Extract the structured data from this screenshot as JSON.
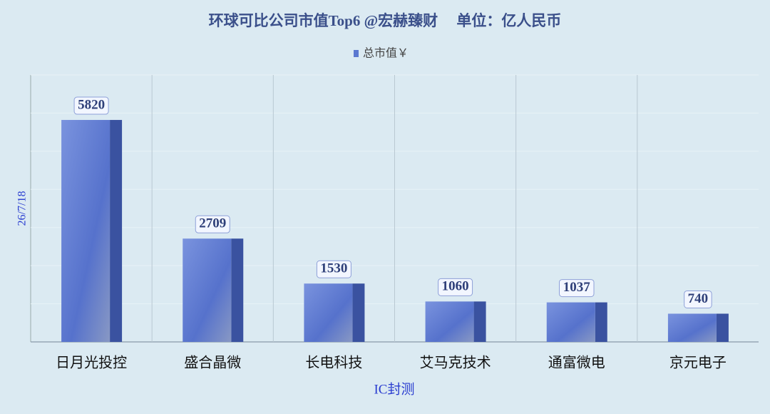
{
  "chart_data": {
    "type": "bar3d",
    "title": "环球可比公司市值Top6 @宏赫臻财     单位：亿人民币",
    "x_label": "IC封测",
    "y_label": "26/7/18",
    "categories": [
      "日月光投控",
      "盛合晶微",
      "长电科技",
      "艾马克技术",
      "通富微电",
      "京元电子"
    ],
    "series": [
      {
        "name": "总市值￥",
        "color": "#5b78d0",
        "values": [
          5820,
          2709,
          1530,
          1060,
          1037,
          740
        ]
      }
    ],
    "ylim": [
      0,
      7000
    ],
    "yticks": [
      0,
      1000,
      2000,
      3000,
      4000,
      5000,
      6000,
      7000
    ],
    "ytick_labels": false,
    "grid": true,
    "legend": "top"
  }
}
